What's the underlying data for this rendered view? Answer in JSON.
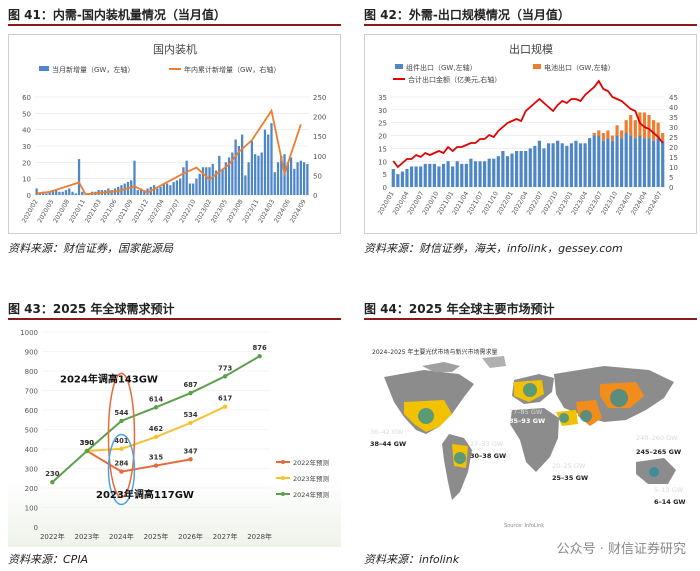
{
  "panel41": {
    "fig_title": "图 41：内需-国内装机量情况（当月值）",
    "source": "资料来源：财信证券，国家能源局",
    "chart_data": {
      "type": "bar",
      "title": "国内装机",
      "legend_bar": "当月新增量（GW，左轴）",
      "legend_line": "年内累计新增量（GW，右轴）",
      "left_ticks": [
        "0",
        "10",
        "20",
        "30",
        "40",
        "50",
        "60"
      ],
      "right_ticks": [
        "0",
        "50",
        "100",
        "150",
        "200",
        "250"
      ],
      "xticks": [
        "2020/02",
        "2020/05",
        "2020/08",
        "2020/11",
        "2021/03",
        "2021/06",
        "2021/09",
        "2021/12",
        "2022/04",
        "2022/07",
        "2022/10",
        "2023/02",
        "2023/05",
        "2023/08",
        "2023/11",
        "2024/03",
        "2024/06",
        "2024/09"
      ],
      "ylim_left": [
        0,
        60
      ],
      "ylim_right": [
        0,
        250
      ],
      "bars": [
        4,
        1,
        2,
        1,
        2,
        3,
        3,
        2,
        2,
        3,
        4,
        2,
        1,
        22,
        2,
        1,
        1,
        2,
        2,
        3,
        3,
        3,
        4,
        3,
        4,
        5,
        6,
        7,
        8,
        9,
        21,
        3,
        4,
        3,
        4,
        5,
        6,
        4,
        5,
        7,
        7,
        6,
        8,
        9,
        10,
        17,
        21,
        7,
        7,
        10,
        13,
        17,
        17,
        17,
        19,
        15,
        24,
        16,
        20,
        23,
        26,
        34,
        30,
        37,
        12,
        20,
        33,
        25,
        24,
        26,
        40,
        37,
        44,
        14,
        20,
        24,
        25,
        20,
        23,
        16,
        20,
        21,
        20,
        19
      ],
      "line_x": [
        0,
        4,
        13,
        15,
        25,
        30,
        34,
        45,
        49,
        53,
        59,
        62,
        64,
        66,
        72,
        76,
        81
      ],
      "line_y": [
        4,
        8,
        32,
        2,
        10,
        22,
        6,
        55,
        70,
        40,
        78,
        110,
        125,
        140,
        215,
        55,
        180
      ]
    }
  },
  "panel42": {
    "fig_title": "图 42：外需-出口规模情况（当月值）",
    "source": "资料来源：财信证券，海关，infolink，gessey.com",
    "chart_data": {
      "type": "bar",
      "title": "出口规模",
      "legend": [
        "组件出口（GW,左轴）",
        "电池出口（GW,左轴）",
        "合计出口金额（亿美元,右轴）"
      ],
      "left_ticks": [
        "0",
        "5",
        "10",
        "15",
        "20",
        "25",
        "30",
        "35"
      ],
      "right_ticks": [
        "0",
        "5",
        "10",
        "15",
        "20",
        "25",
        "30",
        "35",
        "40",
        "45"
      ],
      "xticks": [
        "2020/01",
        "2020/04",
        "2020/07",
        "2020/10",
        "2021/01",
        "2021/04",
        "2021/07",
        "2021/10",
        "2022/01",
        "2022/04",
        "2022/07",
        "2022/10",
        "2023/01",
        "2023/04",
        "2023/07",
        "2023/10",
        "2024/01",
        "2024/04",
        "2024/07"
      ],
      "ylim_left": [
        0,
        35
      ],
      "ylim_right": [
        0,
        45
      ],
      "module": [
        7,
        5,
        6,
        7,
        8,
        8,
        8,
        9,
        9,
        9,
        8,
        9,
        10,
        8,
        10,
        9,
        9,
        11,
        10,
        10,
        10,
        11,
        11,
        12,
        14,
        12,
        13,
        14,
        14,
        14,
        15,
        16,
        18,
        15,
        17,
        17,
        18,
        17,
        16,
        17,
        18,
        17,
        17,
        19,
        20,
        20,
        18,
        19,
        18,
        20,
        19,
        21,
        20,
        19,
        20,
        19,
        19,
        18,
        19,
        18
      ],
      "cell": [
        0,
        0,
        0,
        0,
        0,
        0,
        0,
        0,
        0,
        0,
        0,
        0,
        0,
        0,
        0,
        0,
        0,
        0,
        0,
        0,
        0,
        0,
        0,
        0,
        0,
        0,
        0,
        0,
        0,
        0,
        0,
        0,
        0,
        0,
        0,
        0,
        0,
        0,
        0,
        0,
        0,
        0,
        0,
        0,
        1,
        2,
        3,
        3,
        2,
        4,
        3,
        5,
        8,
        7,
        9,
        10,
        9,
        8,
        6,
        3
      ],
      "amount": [
        13,
        10,
        12,
        14,
        14,
        16,
        15,
        17,
        16,
        17,
        18,
        17,
        20,
        18,
        20,
        20,
        21,
        22,
        22,
        24,
        24,
        26,
        25,
        28,
        30,
        32,
        33,
        34,
        33,
        38,
        40,
        42,
        44,
        42,
        40,
        38,
        41,
        43,
        42,
        44,
        44,
        43,
        46,
        48,
        50,
        53,
        49,
        48,
        45,
        44,
        43,
        41,
        39,
        38,
        32,
        30,
        29,
        27,
        25,
        22
      ]
    }
  },
  "panel43": {
    "fig_title": "图 43：2025 年全球需求预计",
    "source": "资料来源：CPIA",
    "chart_data": {
      "type": "line",
      "ylim": [
        0,
        1000
      ],
      "yticks": [
        "0",
        "100",
        "200",
        "300",
        "400",
        "500",
        "600",
        "700",
        "800",
        "900",
        "1000"
      ],
      "categories": [
        "2022年",
        "2023年",
        "2024年",
        "2025年",
        "2026年",
        "2027年",
        "2028年"
      ],
      "series": [
        {
          "name": "2022年预测",
          "color": "#e8693a",
          "values": [
            null,
            390,
            284,
            315,
            347,
            null,
            null
          ]
        },
        {
          "name": "2023年预测",
          "color": "#f5c330",
          "values": [
            null,
            390,
            401,
            462,
            534,
            617,
            null
          ]
        },
        {
          "name": "2024年预测",
          "color": "#5ba04a",
          "values": [
            230,
            390,
            544,
            614,
            687,
            773,
            876
          ]
        }
      ],
      "annotations": [
        "2024年调高143GW",
        "2023年调高117GW"
      ]
    }
  },
  "panel44": {
    "fig_title": "图 44：2025 年全球主要市场预计",
    "source": "资料来源：infolink",
    "map_header": "2024–2025 年主要光伏市场与新兴市场需求量",
    "footnote": "Source: InfoLink",
    "labels": [
      {
        "t1": "77–85 GW",
        "t2": "85–93 GW"
      },
      {
        "t1": "36–42 GW",
        "t2": "38–44 GW"
      },
      {
        "t1": "27–33 GW",
        "t2": "30–38 GW"
      },
      {
        "t1": "240–260 GW",
        "t2": "245–265 GW"
      },
      {
        "t1": "20–25 GW",
        "t2": "25–35 GW"
      },
      {
        "t1": "5–13 GW",
        "t2": "6–14 GW"
      }
    ]
  },
  "watermark": "公众号 · 财信证券研究"
}
